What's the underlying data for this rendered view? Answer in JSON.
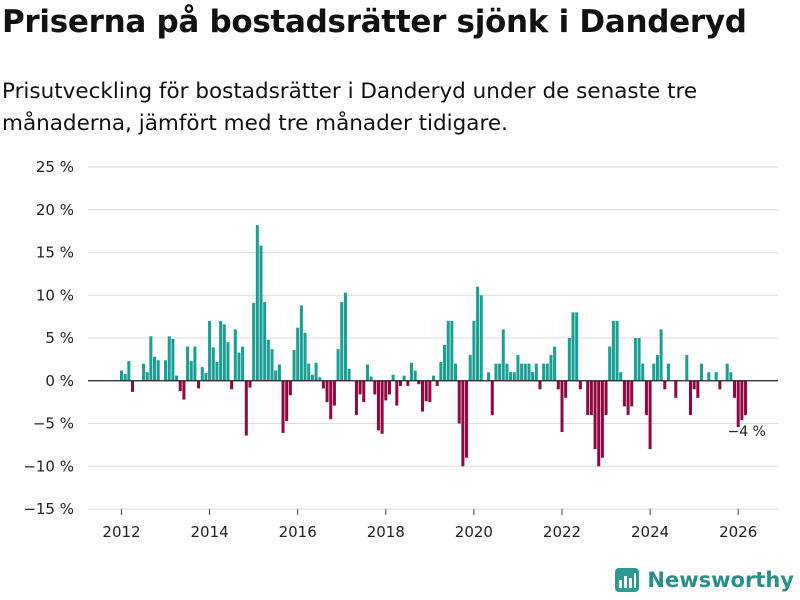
{
  "title": "Priserna på bostadsrätter sjönk i Danderyd",
  "subtitle": "Prisutveckling för bostadsrätter i Danderyd under de senaste tre månaderna, jämfört med tre månader tidigare.",
  "brand": {
    "name": "Newsworthy",
    "color": "#2a9a92"
  },
  "colors": {
    "positive": "#1b9e93",
    "negative": "#92073f",
    "grid": "#dddddd",
    "zero": "#222222"
  },
  "chart_data": {
    "type": "bar",
    "title": "Priserna på bostadsrätter sjönk i Danderyd",
    "xlabel": "",
    "ylabel": "",
    "ylim": [
      -15,
      25
    ],
    "y_ticks": [
      25,
      20,
      15,
      10,
      5,
      0,
      -5,
      -10,
      -15
    ],
    "y_tick_labels": [
      "25 %",
      "20 %",
      "15 %",
      "10 %",
      "5 %",
      "0 %",
      "−5 %",
      "−10 %",
      "−15 %"
    ],
    "x_ticks": [
      "2012",
      "2014",
      "2016",
      "2018",
      "2020",
      "2022",
      "2024",
      "2026"
    ],
    "start": {
      "year": 2012,
      "month": 1
    },
    "unit": "%",
    "values": [
      1.2,
      0.8,
      2.3,
      -1.3,
      0,
      0,
      2.0,
      1.0,
      5.2,
      2.8,
      2.4,
      0,
      2.4,
      5.2,
      4.9,
      0.6,
      -1.2,
      -2.2,
      4.0,
      2.3,
      4.0,
      -0.9,
      1.6,
      0.9,
      7.0,
      3.9,
      2.2,
      7.0,
      6.6,
      4.5,
      -1.0,
      6.0,
      3.3,
      4.0,
      -6.4,
      -0.8,
      9.1,
      18.2,
      15.8,
      9.2,
      4.8,
      3.7,
      1.2,
      1.9,
      -6.1,
      -4.7,
      -1.7,
      3.6,
      6.2,
      8.8,
      5.6,
      2.0,
      0.7,
      2.1,
      0.4,
      -0.9,
      -2.5,
      -4.5,
      -2.9,
      3.7,
      9.2,
      10.3,
      1.4,
      0,
      -4.0,
      -1.6,
      -2.5,
      1.9,
      0.5,
      -1.6,
      -5.8,
      -6.2,
      -2.3,
      -1.6,
      0.7,
      -2.9,
      -0.6,
      0.6,
      -0.6,
      2.1,
      1.2,
      -0.4,
      -3.6,
      -2.4,
      -2.5,
      0.6,
      -0.6,
      2.2,
      4.2,
      7.0,
      7.0,
      2.0,
      -5.0,
      -10.0,
      -9.0,
      3.0,
      7.0,
      11.0,
      10.0,
      0,
      1.0,
      -4.0,
      2.0,
      2.0,
      6.0,
      2.0,
      1.0,
      1.0,
      3.0,
      2.0,
      2.0,
      2.0,
      1.0,
      2.0,
      -1.0,
      2.0,
      2.0,
      3.0,
      4.0,
      -1.0,
      -6.0,
      -2.0,
      5.0,
      8.0,
      8.0,
      -1.0,
      0,
      -4.0,
      -4.0,
      -8.0,
      -10.0,
      -9.0,
      -4.0,
      4.0,
      7.0,
      7.0,
      1.0,
      -3.0,
      -4.0,
      -3.0,
      5.0,
      5.0,
      2.0,
      -4.0,
      -8.0,
      2.0,
      3.0,
      6.0,
      -1.0,
      2.0,
      0,
      -2.0,
      0,
      0,
      3.0,
      -4.0,
      -1.0,
      -2.0,
      2.0,
      0,
      1.0,
      0,
      1.0,
      -1.0,
      0,
      2.0,
      1.0,
      -2.0,
      -5.4,
      -4.6,
      -4.0
    ],
    "annotations": [
      {
        "label": "−4 %",
        "value": -4.0,
        "period": "latest"
      }
    ]
  }
}
